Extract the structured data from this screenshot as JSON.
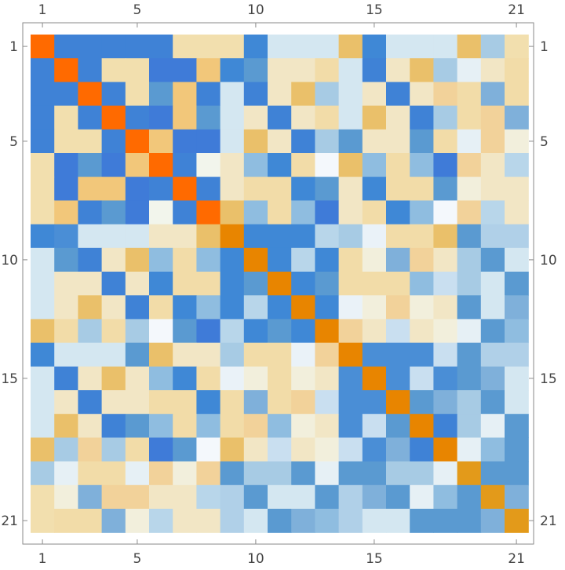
{
  "chart_data": {
    "type": "heatmap",
    "title": "",
    "xlabel": "",
    "ylabel": "",
    "rows": 21,
    "cols": 21,
    "tick_labels": [
      1,
      5,
      10,
      15,
      21
    ],
    "diagonal_colors": [
      "#ff6a00",
      "#ff6a00",
      "#ff6a00",
      "#ff6a00",
      "#ff6a00",
      "#ff6a00",
      "#ff6a00",
      "#ff6a00",
      "#e88500",
      "#e88500",
      "#e88500",
      "#e88500",
      "#e88500",
      "#e88500",
      "#e88500",
      "#e88500",
      "#e88500",
      "#e88500",
      "#e39a1a",
      "#e39a1a",
      "#e39a1a"
    ],
    "grid_colors": [
      [
        "#ff6a00",
        "#3f82d6",
        "#3f82d6",
        "#3f82d6",
        "#3f82d6",
        "#3f82d6",
        "#f2dfae",
        "#f2dfae",
        "#f2dfae",
        "#3f88d6",
        "#d4e7f1",
        "#d4e7f1",
        "#d4e7f1",
        "#eac06a",
        "#3f88d6",
        "#d4e7f1",
        "#d4e7f1",
        "#d4e7f1",
        "#eac06a",
        "#a7cbe4",
        "#f2dfae"
      ],
      [
        "#3f82d6",
        "#ff6a00",
        "#3f82d6",
        "#f2dfae",
        "#f2dfae",
        "#3f7bd8",
        "#3f7bd8",
        "#f2c77a",
        "#3f88d6",
        "#5a9ad1",
        "#f2e6c5",
        "#f2e6c5",
        "#f2dca8",
        "#d4e7f1",
        "#3f82d6",
        "#f2e6c5",
        "#eac06a",
        "#a7cbe4",
        "#e6f0f5",
        "#f2e6c5",
        "#f2dca8"
      ],
      [
        "#3f82d6",
        "#3f82d6",
        "#ff6a00",
        "#3f82d6",
        "#f2dfae",
        "#5a9ad1",
        "#f2c77a",
        "#3f82d6",
        "#d4e7f1",
        "#3f82d6",
        "#f2e6c5",
        "#eac06a",
        "#a7cbe4",
        "#d4e7f1",
        "#f2e6c5",
        "#3f82d6",
        "#f2e6c5",
        "#f2d29a",
        "#f2dca8",
        "#7fb0da",
        "#f2dca8"
      ],
      [
        "#3f82d6",
        "#f2dfae",
        "#3f82d6",
        "#ff6a00",
        "#3f82d6",
        "#3f7bd8",
        "#f2c77a",
        "#5a9ad1",
        "#d4e7f1",
        "#f2e6c5",
        "#3f82d6",
        "#f2e6c5",
        "#f2dca8",
        "#d4e7f1",
        "#eac06a",
        "#f2e6c5",
        "#3f82d6",
        "#a7cbe4",
        "#f2dca8",
        "#f2d29a",
        "#7fb0da"
      ],
      [
        "#3f82d6",
        "#f2dfae",
        "#f2dfae",
        "#3f82d6",
        "#ff6a00",
        "#f2c77a",
        "#3f7bd8",
        "#3f7bd8",
        "#d4e7f1",
        "#eac06a",
        "#f2e6c5",
        "#3f82d6",
        "#a7cbe4",
        "#5a9ad1",
        "#f2e6c5",
        "#f2e6c5",
        "#5a9ad1",
        "#f2dca8",
        "#e6f0f5",
        "#f2d29a",
        "#f2efdc"
      ],
      [
        "#f2dfae",
        "#3f7bd8",
        "#5a9ad1",
        "#3f7bd8",
        "#f2c77a",
        "#ff6a00",
        "#3f82d6",
        "#f2f5ec",
        "#f2e6c5",
        "#8fbde0",
        "#3f88d6",
        "#f2dca8",
        "#f4f8fc",
        "#eac06a",
        "#8fbde0",
        "#f2dca8",
        "#8fbde0",
        "#3f7bd8",
        "#f2d29a",
        "#f2e6c5",
        "#b8d6ea"
      ],
      [
        "#f2dfae",
        "#3f7bd8",
        "#f2c77a",
        "#f2c77a",
        "#3f7bd8",
        "#3f82d6",
        "#ff6a00",
        "#3f82d6",
        "#f2e6c5",
        "#f2dca8",
        "#f2dca8",
        "#3f88d6",
        "#5a9ad1",
        "#f2e6c5",
        "#3f88d6",
        "#f2dca8",
        "#f2dca8",
        "#5a9ad1",
        "#f2efdc",
        "#f2e6c5",
        "#f2e6c5"
      ],
      [
        "#f2dfae",
        "#f2c77a",
        "#3f82d6",
        "#5a9ad1",
        "#3f7bd8",
        "#f2f5ec",
        "#3f82d6",
        "#ff6a00",
        "#eac06a",
        "#8fbde0",
        "#f2dca8",
        "#8fbde0",
        "#3f7bd8",
        "#f2e6c5",
        "#f2dca8",
        "#3f88d6",
        "#8fbde0",
        "#f4f8fc",
        "#f2d29a",
        "#b8d6ea",
        "#f2e6c5"
      ],
      [
        "#3f88d6",
        "#4a8ed6",
        "#d4e7f1",
        "#d4e7f1",
        "#d4e7f1",
        "#f2e6c5",
        "#f2e6c5",
        "#eac06a",
        "#e88500",
        "#3f88d6",
        "#3f88d6",
        "#3f88d6",
        "#b8d6ea",
        "#a7cbe4",
        "#eaf2f8",
        "#f2dca8",
        "#f2dca8",
        "#eac06a",
        "#5a9ad1",
        "#b0d0e8",
        "#b0d0e8"
      ],
      [
        "#d4e7f1",
        "#5a9ad1",
        "#3f82d6",
        "#f2e6c5",
        "#eac06a",
        "#8fbde0",
        "#f2dca8",
        "#8fbde0",
        "#3f88d6",
        "#e88500",
        "#3f88d6",
        "#b8d6ea",
        "#3f88d6",
        "#f2dca8",
        "#f2efdc",
        "#7fb0da",
        "#f2d29a",
        "#f2e6c5",
        "#a7cbe4",
        "#5a9ad1",
        "#d4e7f1"
      ],
      [
        "#d4e7f1",
        "#f2e6c5",
        "#f2e6c5",
        "#3f82d6",
        "#f2e6c5",
        "#3f88d6",
        "#f2dca8",
        "#f2dca8",
        "#3f88d6",
        "#5a9ad1",
        "#e88500",
        "#3f88d6",
        "#5a9ad1",
        "#f2dca8",
        "#f2dca8",
        "#f2dca8",
        "#8fbde0",
        "#c9dff0",
        "#a7cbe4",
        "#d4e7f1",
        "#5a9ad1"
      ],
      [
        "#d4e7f1",
        "#f2e6c5",
        "#eac06a",
        "#f2e6c5",
        "#3f82d6",
        "#f2dca8",
        "#3f88d6",
        "#8fbde0",
        "#3f88d6",
        "#b8d6ea",
        "#3f88d6",
        "#e88500",
        "#3f88d6",
        "#eaf2f8",
        "#f2efdc",
        "#f2d29a",
        "#f2efdc",
        "#f2e6c5",
        "#5a9ad1",
        "#d4e7f1",
        "#7fb0da"
      ],
      [
        "#eac06a",
        "#f2dca8",
        "#a7cbe4",
        "#f2dca8",
        "#a7cbe4",
        "#f4f8fc",
        "#5a9ad1",
        "#3f7bd8",
        "#b8d6ea",
        "#3f88d6",
        "#5a9ad1",
        "#3f88d6",
        "#e88500",
        "#f2d29a",
        "#f2e6c5",
        "#c9dff0",
        "#f2e6c5",
        "#f2efdc",
        "#e6f0f5",
        "#5a9ad1",
        "#8fbde0"
      ],
      [
        "#3f88d6",
        "#d4e7f1",
        "#d4e7f1",
        "#d4e7f1",
        "#5a9ad1",
        "#eac06a",
        "#f2e6c5",
        "#f2e6c5",
        "#a7cbe4",
        "#f2dca8",
        "#f2dca8",
        "#eaf2f8",
        "#f2d29a",
        "#e88500",
        "#4a8ed6",
        "#4a8ed6",
        "#4a8ed6",
        "#c9dff0",
        "#5a9ad1",
        "#b0d0e8",
        "#b0d0e8"
      ],
      [
        "#d4e7f1",
        "#3f82d6",
        "#f2e6c5",
        "#eac06a",
        "#f2e6c5",
        "#8fbde0",
        "#3f88d6",
        "#f2dca8",
        "#eaf2f8",
        "#f2efdc",
        "#f2dca8",
        "#f2efdc",
        "#f2e6c5",
        "#4a8ed6",
        "#e88500",
        "#4a8ed6",
        "#c9dff0",
        "#4a8ed6",
        "#5a9ad1",
        "#7fb0da",
        "#d4e7f1"
      ],
      [
        "#d4e7f1",
        "#f2e6c5",
        "#3f82d6",
        "#f2e6c5",
        "#f2e6c5",
        "#f2dca8",
        "#f2dca8",
        "#3f88d6",
        "#f2dca8",
        "#7fb0da",
        "#f2dca8",
        "#f2d29a",
        "#c9dff0",
        "#4a8ed6",
        "#4a8ed6",
        "#e88500",
        "#5a9ad1",
        "#7fb0da",
        "#a7cbe4",
        "#5a9ad1",
        "#d4e7f1"
      ],
      [
        "#d4e7f1",
        "#eac06a",
        "#f2e6c5",
        "#3f82d6",
        "#5a9ad1",
        "#8fbde0",
        "#f2dca8",
        "#8fbde0",
        "#f2dca8",
        "#f2d29a",
        "#8fbde0",
        "#f2efdc",
        "#f2e6c5",
        "#4a8ed6",
        "#c9dff0",
        "#5a9ad1",
        "#e88500",
        "#3f82d6",
        "#a7cbe4",
        "#e6f0f5",
        "#5a9ad1"
      ],
      [
        "#eac06a",
        "#a7cbe4",
        "#f2d29a",
        "#a7cbe4",
        "#f2dca8",
        "#3f7bd8",
        "#5a9ad1",
        "#f4f8fc",
        "#eac06a",
        "#f2e6c5",
        "#c9dff0",
        "#f2e6c5",
        "#f2efdc",
        "#c9dff0",
        "#4a8ed6",
        "#7fb0da",
        "#3f82d6",
        "#e88500",
        "#e6f0f5",
        "#8fbde0",
        "#5a9ad1"
      ],
      [
        "#a7cbe4",
        "#e6f0f5",
        "#f2dca8",
        "#f2dca8",
        "#e6f0f5",
        "#f2d29a",
        "#f2efdc",
        "#f2d29a",
        "#5a9ad1",
        "#a7cbe4",
        "#a7cbe4",
        "#5a9ad1",
        "#e6f0f5",
        "#5a9ad1",
        "#5a9ad1",
        "#a7cbe4",
        "#a7cbe4",
        "#e6f0f5",
        "#e39a1a",
        "#5a9ad1",
        "#5a9ad1"
      ],
      [
        "#f2dfae",
        "#f2efdc",
        "#7fb0da",
        "#f2d29a",
        "#f2d29a",
        "#f2e6c5",
        "#f2e6c5",
        "#b8d6ea",
        "#b0d0e8",
        "#5a9ad1",
        "#d4e7f1",
        "#d4e7f1",
        "#5a9ad1",
        "#b0d0e8",
        "#7fb0da",
        "#5a9ad1",
        "#e6f0f5",
        "#8fbde0",
        "#5a9ad1",
        "#e39a1a",
        "#7fb0da"
      ],
      [
        "#f2dfae",
        "#f2dca8",
        "#f2dca8",
        "#7fb0da",
        "#f2efdc",
        "#b8d6ea",
        "#f2e6c5",
        "#f2e6c5",
        "#b0d0e8",
        "#d4e7f1",
        "#5a9ad1",
        "#7fb0da",
        "#8fbde0",
        "#b0d0e8",
        "#d4e7f1",
        "#d4e7f1",
        "#5a9ad1",
        "#5a9ad1",
        "#5a9ad1",
        "#7fb0da",
        "#e39a1a"
      ]
    ]
  }
}
